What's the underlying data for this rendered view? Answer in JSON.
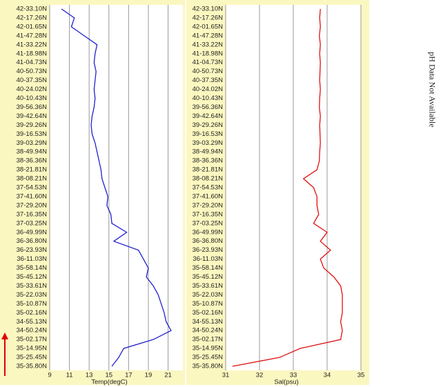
{
  "chart_data": [
    {
      "type": "line",
      "orientation": "horizontal",
      "x_label": "Temp(degC)",
      "color": "#2020d0",
      "xlim": [
        9,
        22.5
      ],
      "xticks": [
        9,
        11,
        13,
        15,
        17,
        19,
        21
      ],
      "grid": true,
      "categories": [
        "42-33.10N",
        "42-17.26N",
        "42-01.65N",
        "41-47.28N",
        "41-33.22N",
        "41-18.98N",
        "41-04.73N",
        "40-50.73N",
        "40-37.35N",
        "40-24.02N",
        "40-10.43N",
        "39-56.36N",
        "39-42.64N",
        "39-29.26N",
        "39-16.53N",
        "39-03.29N",
        "38-49.94N",
        "38-36.36N",
        "38-21.81N",
        "38-08.21N",
        "37-54.53N",
        "37-41.60N",
        "37-29.20N",
        "37-16.35N",
        "37-03.25N",
        "36-49.99N",
        "36-36.80N",
        "36-23.93N",
        "36-11.03N",
        "35-58.14N",
        "35-45.12N",
        "35-33.61N",
        "35-22.03N",
        "35-10.87N",
        "35-02.16N",
        "34-55.13N",
        "34-50.24N",
        "35-02.17N",
        "35-14.95N",
        "35-25.45N",
        "35-35.80N"
      ],
      "values": [
        10.2,
        11.5,
        11.2,
        12.5,
        13.8,
        13.6,
        13.5,
        13.7,
        13.6,
        13.5,
        13.6,
        13.5,
        13.3,
        13.2,
        13.3,
        13.6,
        13.8,
        14.0,
        14.2,
        14.3,
        14.6,
        14.9,
        14.8,
        15.2,
        15.3,
        16.8,
        15.5,
        18.0,
        18.5,
        19.0,
        18.8,
        19.5,
        20.0,
        20.3,
        20.6,
        20.8,
        21.3,
        19.5,
        16.5,
        16.0,
        15.3
      ]
    },
    {
      "type": "line",
      "orientation": "horizontal",
      "x_label": "Sal(psu)",
      "color": "#e01010",
      "xlim": [
        31,
        35
      ],
      "xticks": [
        31,
        32,
        33,
        34,
        35
      ],
      "grid": true,
      "categories": [
        "42-33.10N",
        "42-17.26N",
        "42-01.65N",
        "41-47.28N",
        "41-33.22N",
        "41-18.98N",
        "41-04.73N",
        "40-50.73N",
        "40-37.35N",
        "40-24.02N",
        "40-10.43N",
        "39-56.36N",
        "39-42.64N",
        "39-29.26N",
        "39-16.53N",
        "39-03.29N",
        "38-49.94N",
        "38-36.36N",
        "38-21.81N",
        "38-08.21N",
        "37-54.53N",
        "37-41.60N",
        "37-29.20N",
        "37-16.35N",
        "37-03.25N",
        "36-49.99N",
        "36-36.80N",
        "36-23.93N",
        "36-11.03N",
        "35-58.14N",
        "35-45.12N",
        "35-33.61N",
        "35-22.03N",
        "35-10.87N",
        "35-02.16N",
        "34-55.13N",
        "34-50.24N",
        "35-02.17N",
        "35-14.95N",
        "35-25.45N",
        "35-35.80N"
      ],
      "values": [
        33.8,
        33.78,
        33.8,
        33.77,
        33.8,
        33.78,
        33.8,
        33.79,
        33.78,
        33.8,
        33.78,
        33.77,
        33.8,
        33.78,
        33.79,
        33.8,
        33.78,
        33.77,
        33.7,
        33.3,
        33.6,
        33.7,
        33.7,
        33.75,
        33.6,
        34.0,
        33.8,
        34.1,
        33.8,
        33.9,
        34.2,
        34.4,
        34.45,
        34.45,
        34.45,
        34.4,
        34.45,
        34.4,
        33.2,
        32.6,
        31.2
      ]
    }
  ],
  "note": "pH Data Not Available"
}
